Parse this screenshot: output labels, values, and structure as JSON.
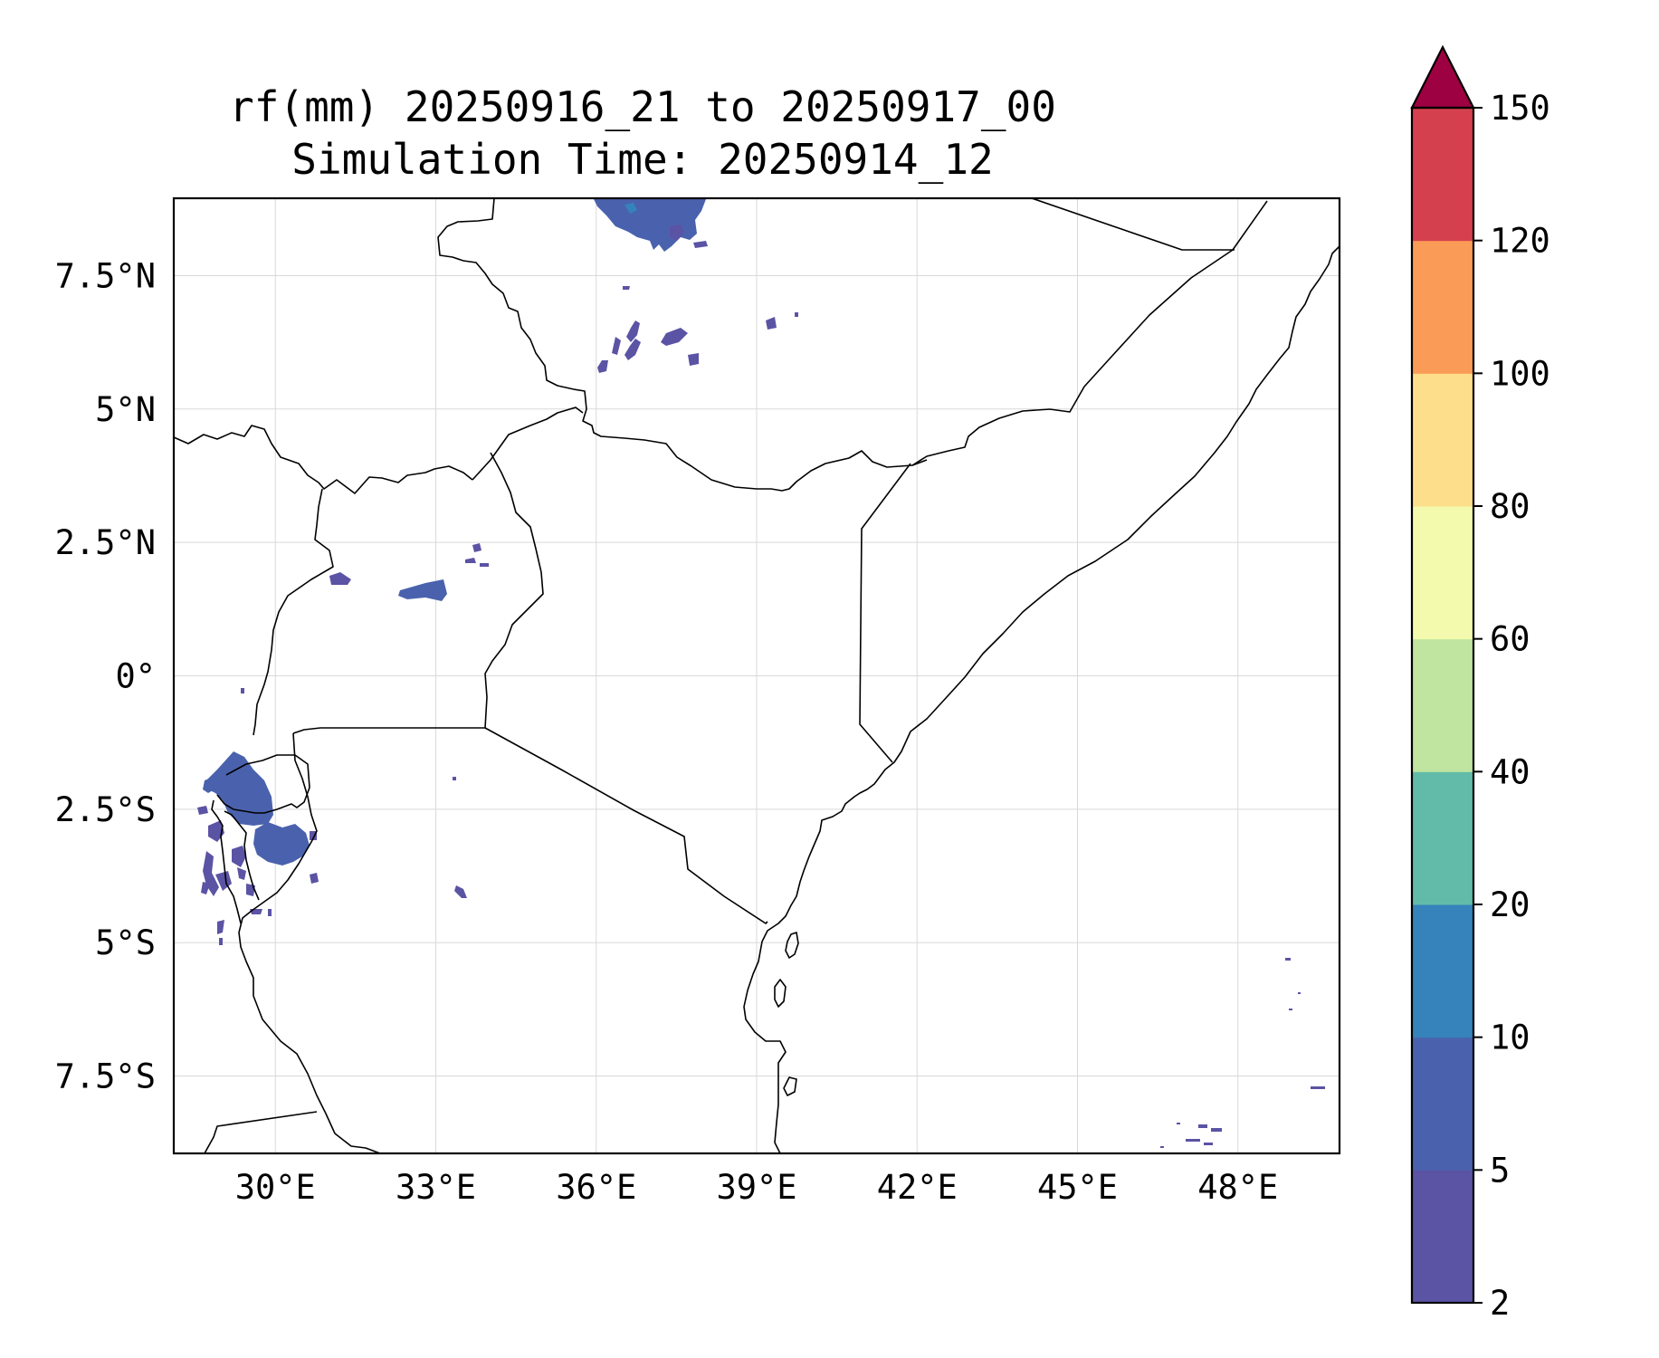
{
  "figure": {
    "title_line1": "rf(mm) 20250916_21 to 20250917_00",
    "title_line2": "Simulation Time: 20250914_12"
  },
  "map": {
    "extent": {
      "lon_min": 28.1,
      "lon_max": 49.9,
      "lat_min": -8.95,
      "lat_max": 8.95
    },
    "x_ticks": [
      {
        "lon": 30,
        "label": "30°E"
      },
      {
        "lon": 33,
        "label": "33°E"
      },
      {
        "lon": 36,
        "label": "36°E"
      },
      {
        "lon": 39,
        "label": "39°E"
      },
      {
        "lon": 42,
        "label": "42°E"
      },
      {
        "lon": 45,
        "label": "45°E"
      },
      {
        "lon": 48,
        "label": "48°E"
      }
    ],
    "y_ticks": [
      {
        "lat": 7.5,
        "label": "7.5°N"
      },
      {
        "lat": 5,
        "label": "5°N"
      },
      {
        "lat": 2.5,
        "label": "2.5°N"
      },
      {
        "lat": 0,
        "label": "0°"
      },
      {
        "lat": -2.5,
        "label": "2.5°S"
      },
      {
        "lat": -5,
        "label": "5°S"
      },
      {
        "lat": -7.5,
        "label": "7.5°S"
      }
    ],
    "gridlines": true
  },
  "colorbar": {
    "levels": [
      2,
      5,
      10,
      20,
      40,
      60,
      80,
      100,
      120,
      150
    ],
    "tick_labels": [
      "2",
      "5",
      "10",
      "20",
      "40",
      "60",
      "80",
      "100",
      "120",
      "150"
    ],
    "colors": [
      "#5b53a4",
      "#4a62ad",
      "#3683bb",
      "#62bba9",
      "#bfe5a0",
      "#f3faad",
      "#fddf8b",
      "#fa9b58",
      "#d5404e"
    ],
    "extend_color": "#9e0142",
    "extend": "max"
  }
}
